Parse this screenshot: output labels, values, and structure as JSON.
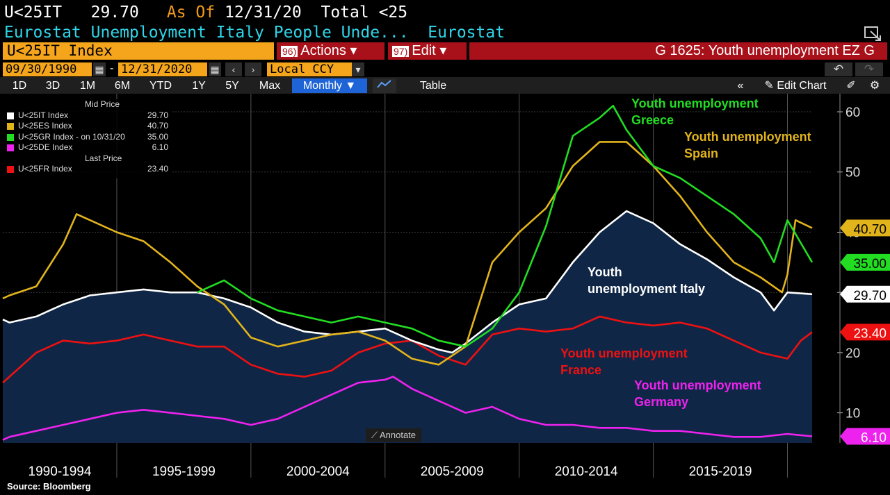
{
  "header": {
    "ticker": "U<25IT",
    "price": "29.70",
    "as_of": "As Of",
    "as_of_date": "12/31/20",
    "total": "Total <25",
    "subtitle": "Eurostat Unemployment Italy People Unde...",
    "source_name": "Eurostat"
  },
  "toolbar": {
    "ticker_field": "U<25IT Index",
    "actions_num": "96)",
    "actions_label": "Actions ▾",
    "edit_num": "97)",
    "edit_label": "Edit ▾",
    "chart_title": "G 1625: Youth unemployment EZ G",
    "start_date": "09/30/1990",
    "end_date": "12/31/2020",
    "currency": "Local CCY",
    "periods": [
      "1D",
      "3D",
      "1M",
      "6M",
      "YTD",
      "1Y",
      "5Y",
      "Max"
    ],
    "frequency": "Monthly ▼",
    "table_label": "Table",
    "edit_chart_label": "Edit Chart"
  },
  "legend": {
    "mid_price_header": "Mid Price",
    "last_price_header": "Last Price",
    "rows": [
      {
        "name": "U<25IT Index",
        "value": "29.70",
        "color": "#ffffff"
      },
      {
        "name": "U<25ES Index",
        "value": "40.70",
        "color": "#e2b41c"
      },
      {
        "name": "U<25GR Index -  on 10/31/20",
        "value": "35.00",
        "color": "#22dd22"
      },
      {
        "name": "U<25DE Index",
        "value": "6.10",
        "color": "#ee22ee"
      }
    ],
    "last_rows": [
      {
        "name": "U<25FR Index",
        "value": "23.40",
        "color": "#ee1111"
      }
    ]
  },
  "annotate_label": "Annotate",
  "source": "Source: Bloomberg",
  "chart_data": {
    "type": "line",
    "x_range": [
      1990.75,
      2020.92
    ],
    "ylim": [
      5,
      63
    ],
    "y_ticks": [
      10,
      20,
      30,
      40,
      50,
      60
    ],
    "x_period_labels": [
      "1990-1994",
      "1995-1999",
      "2000-2004",
      "2005-2009",
      "2010-2014",
      "2015-2019"
    ],
    "grid": true,
    "legend_position": "top-left",
    "series": [
      {
        "label": "Youth unemployment Italy",
        "color": "#ffffff",
        "last": "29.70",
        "fill": "#0f2646",
        "x": [
          1990.75,
          1991,
          1992,
          1992.5,
          1993,
          1994,
          1995,
          1996,
          1997,
          1998,
          1999,
          2000,
          2001,
          2002,
          2003,
          2004,
          2005,
          2006,
          2007,
          2007.5,
          2008,
          2009,
          2010,
          2011,
          2012,
          2013,
          2014,
          2015,
          2016,
          2017,
          2018,
          2019,
          2019.5,
          2020,
          2020.92
        ],
        "y": [
          25.5,
          25,
          26,
          27,
          28,
          29.5,
          30,
          30.5,
          30,
          30,
          29,
          27.5,
          25,
          23.5,
          23,
          23.5,
          24,
          22,
          20.5,
          20,
          21.5,
          25,
          28,
          29,
          35,
          40,
          43.5,
          41.5,
          38,
          35.5,
          32.5,
          30,
          27,
          30,
          29.7
        ]
      },
      {
        "label": "Youth unemployment Spain",
        "color": "#e2b41c",
        "last": "40.70",
        "x": [
          1990.75,
          1991,
          1992,
          1993,
          1993.5,
          1994,
          1995,
          1996,
          1997,
          1998,
          1999,
          2000,
          2001,
          2002,
          2003,
          2004,
          2005,
          2006,
          2007,
          2008,
          2009,
          2010,
          2011,
          2012,
          2013,
          2014,
          2015,
          2016,
          2017,
          2018,
          2019,
          2019.8,
          2020,
          2020.3,
          2020.92
        ],
        "y": [
          29,
          29.5,
          31,
          38,
          43,
          42,
          40,
          38.5,
          35,
          31,
          28,
          22.5,
          21,
          22,
          23,
          23.5,
          22,
          19,
          18,
          21,
          35,
          40,
          44,
          51,
          55,
          55,
          51,
          46,
          40,
          35,
          32.5,
          30,
          33,
          42,
          40.7
        ]
      },
      {
        "label": "Youth unemployment Greece",
        "color": "#22dd22",
        "last": "35.00",
        "x": [
          1998,
          1999,
          2000,
          2001,
          2002,
          2003,
          2004,
          2005,
          2006,
          2007,
          2008,
          2009,
          2010,
          2011,
          2012,
          2013,
          2013.5,
          2014,
          2015,
          2016,
          2017,
          2018,
          2019,
          2019.5,
          2020,
          2020.92
        ],
        "y": [
          30,
          32,
          29,
          27,
          26,
          25,
          26,
          25,
          24,
          22,
          21,
          24,
          30,
          41,
          56,
          59,
          61,
          57,
          51,
          49,
          46,
          43,
          39,
          35,
          42,
          35
        ]
      },
      {
        "label": "Youth unemployment France",
        "color": "#ee1111",
        "last": "23.40",
        "x": [
          1990.75,
          1991,
          1992,
          1993,
          1994,
          1995,
          1996,
          1997,
          1998,
          1999,
          2000,
          2001,
          2002,
          2003,
          2004,
          2005,
          2006,
          2007,
          2008,
          2009,
          2010,
          2011,
          2012,
          2013,
          2014,
          2015,
          2016,
          2017,
          2018,
          2019,
          2020,
          2020.5,
          2020.92
        ],
        "y": [
          15,
          16,
          20,
          22,
          21.5,
          22,
          23,
          22,
          21,
          21,
          18,
          16.5,
          16,
          17,
          20,
          21.5,
          22,
          19.5,
          18,
          23,
          24,
          23.5,
          24,
          26,
          25,
          24.5,
          25,
          24,
          22,
          20,
          19,
          22,
          23.4
        ]
      },
      {
        "label": "Youth unemployment Germany",
        "color": "#ee22ee",
        "last": "6.10",
        "x": [
          1990.75,
          1991,
          1992,
          1993,
          1994,
          1995,
          1996,
          1997,
          1998,
          1999,
          2000,
          2001,
          2002,
          2003,
          2004,
          2005,
          2005.3,
          2006,
          2007,
          2008,
          2009,
          2010,
          2011,
          2012,
          2013,
          2014,
          2015,
          2016,
          2017,
          2018,
          2019,
          2020,
          2020.92
        ],
        "y": [
          5.5,
          6,
          7,
          8,
          9,
          10,
          10.5,
          10,
          9.5,
          9,
          8,
          9,
          11,
          13,
          15,
          15.5,
          16,
          14,
          12,
          10,
          11,
          9,
          8,
          8,
          7.5,
          7.5,
          7,
          7,
          6.5,
          6,
          6,
          6.5,
          6.1
        ]
      }
    ],
    "annotations": [
      {
        "text": [
          "Youth unemployment",
          "Greece"
        ],
        "series": 2
      },
      {
        "text": [
          "Youth unemployment",
          "Spain"
        ],
        "series": 1
      },
      {
        "text": [
          "Youth",
          "unemployment Italy"
        ],
        "series": 0
      },
      {
        "text": [
          "Youth unemployment",
          "France"
        ],
        "series": 3
      },
      {
        "text": [
          "Youth unemployment",
          "Germany"
        ],
        "series": 4
      }
    ]
  }
}
